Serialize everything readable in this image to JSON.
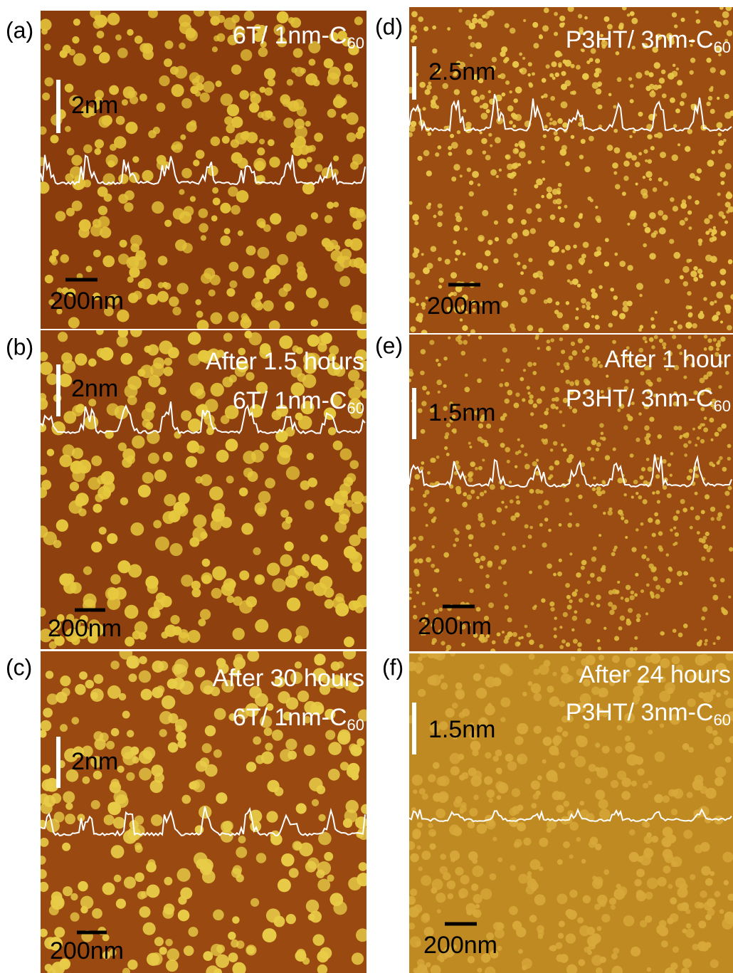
{
  "panels": [
    {
      "label": "(a)",
      "caption": [
        [
          {
            "text": "6T/ 1nm-C"
          },
          {
            "sub": "60"
          }
        ]
      ],
      "height_bar": "2nm",
      "scale_bar": "200nm"
    },
    {
      "label": "(b)",
      "caption": [
        [
          {
            "text": "After 1.5 hours"
          }
        ],
        [
          {
            "text": "6T/ 1nm-C"
          },
          {
            "sub": "60"
          }
        ]
      ],
      "height_bar": "2nm",
      "scale_bar": "200nm"
    },
    {
      "label": "(c)",
      "caption": [
        [
          {
            "text": "After 30 hours"
          }
        ],
        [
          {
            "text": "6T/ 1nm-C"
          },
          {
            "sub": "60"
          }
        ]
      ],
      "height_bar": "2nm",
      "scale_bar": "200nm"
    },
    {
      "label": "(d)",
      "caption": [
        [
          {
            "text": "P3HT/ 3nm-C"
          },
          {
            "sub": "60"
          }
        ]
      ],
      "height_bar": "2.5nm",
      "scale_bar": "200nm"
    },
    {
      "label": "(e)",
      "caption": [
        [
          {
            "text": "After 1 hour"
          }
        ],
        [
          {
            "text": "P3HT/ 3nm-C"
          },
          {
            "sub": "60"
          }
        ]
      ],
      "height_bar": "1.5nm",
      "scale_bar": "200nm"
    },
    {
      "label": "(f)",
      "caption": [
        [
          {
            "text": "After 24 hours"
          }
        ],
        [
          {
            "text": "P3HT/ 3nm-C"
          },
          {
            "sub": "60"
          }
        ]
      ],
      "height_bar": "1.5nm",
      "scale_bar": "200nm"
    }
  ]
}
